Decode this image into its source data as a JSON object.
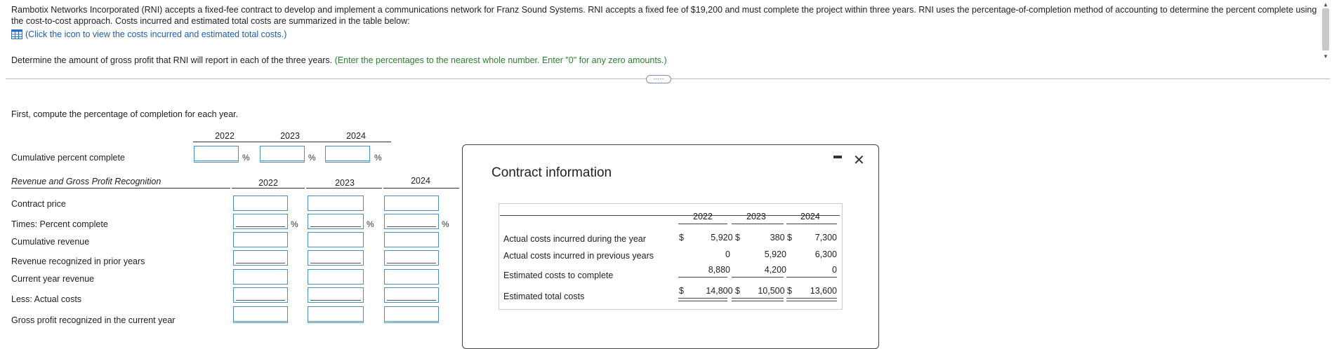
{
  "intro_text": "Rambotix Networks Incorporated (RNI) accepts a fixed-fee contract to develop and implement a communications network for Franz Sound Systems. RNI accepts a fixed fee of $19,200 and must complete the project within three years. RNI uses the percentage-of-completion method of accounting to determine the percent complete using the cost-to-cost approach. Costs incurred and estimated total costs are summarized in the table below:",
  "view_costs_link": "(Click the icon to view the costs incurred and estimated total costs.)",
  "question": {
    "main": "Determine the amount of gross profit that RNI will report in each of the three years.",
    "hint": "(Enter the percentages to the nearest whole number. Enter \"0\" for any zero amounts.)"
  },
  "more_button": "·····",
  "first_instruction": "First, compute the percentage of completion for each year.",
  "years": [
    "2022",
    "2023",
    "2024"
  ],
  "cumulative_row": {
    "label": "Cumulative percent complete",
    "suffix": "%"
  },
  "revenue_table": {
    "header": "Revenue and Gross Profit Recognition",
    "rows": [
      "Contract price",
      "Times: Percent complete",
      "Cumulative revenue",
      "Revenue recognized in prior years",
      "Current year revenue",
      "Less: Actual costs",
      "Gross profit recognized in the current year"
    ],
    "pct_suffix": "%"
  },
  "modal": {
    "title": "Contract information",
    "years": [
      "2022",
      "2023",
      "2024"
    ],
    "rows": [
      {
        "label": "Actual costs incurred during the year",
        "prefix": "$",
        "values": [
          "5,920 $",
          "380 $",
          "7,300"
        ]
      },
      {
        "label": "Actual costs incurred in previous years",
        "prefix": "",
        "values": [
          "0",
          "5,920",
          "6,300"
        ]
      },
      {
        "label": "Estimated costs to complete",
        "prefix": "",
        "values": [
          "8,880",
          "4,200",
          "0"
        ]
      },
      {
        "label": "Estimated total costs",
        "prefix": "$",
        "values": [
          "14,800 $",
          "10,500 $",
          "13,600"
        ]
      }
    ]
  }
}
